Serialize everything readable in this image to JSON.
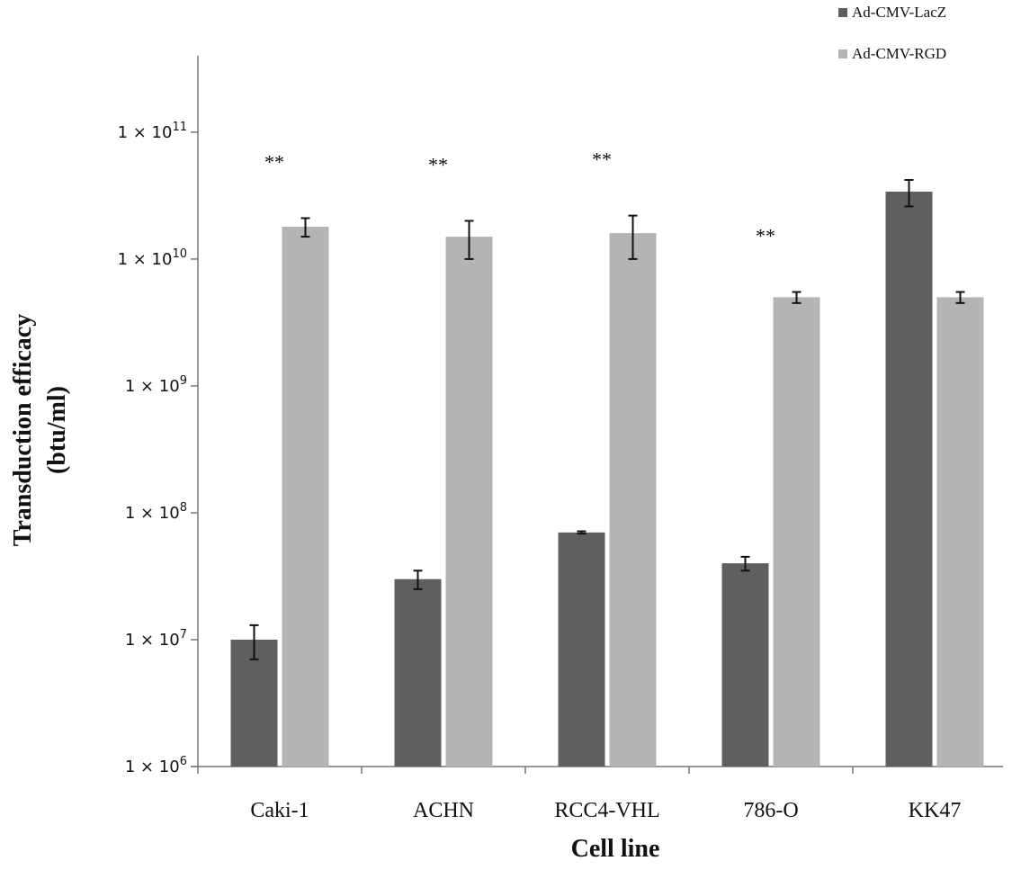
{
  "chart_data": {
    "type": "bar",
    "y_scale": "log",
    "ylim": [
      1000000,
      400000000000
    ],
    "xlabel": "Cell line",
    "ylabel": [
      "Transduction efficacy",
      "(btu/ml)"
    ],
    "y_ticks": [
      {
        "value": 1000000,
        "base": "1 × 10",
        "exp": "6"
      },
      {
        "value": 10000000,
        "base": "1 × 10",
        "exp": "7"
      },
      {
        "value": 100000000,
        "base": "1 × 10",
        "exp": "8"
      },
      {
        "value": 1000000000,
        "base": "1 × 10",
        "exp": "9"
      },
      {
        "value": 10000000000,
        "base": "1 × 10",
        "exp": "10"
      },
      {
        "value": 100000000000,
        "base": "1 × 10",
        "exp": "11"
      }
    ],
    "categories": [
      "Caki-1",
      "ACHN",
      "RCC4-VHL",
      "786-O",
      "KK47"
    ],
    "series": [
      {
        "name": "Ad-CMV-LacZ",
        "color": "#5f5f5f",
        "values": [
          10000000,
          30000000,
          70000000,
          40000000,
          34000000000
        ],
        "errors": [
          3000000,
          5000000,
          1500000,
          5000000,
          8000000000
        ]
      },
      {
        "name": "Ad-CMV-RGD",
        "color": "#b4b4b4",
        "values": [
          18000000000,
          15000000000,
          16000000000,
          5000000000,
          5000000000
        ],
        "errors": [
          3000000000,
          5000000000,
          6000000000,
          500000000,
          500000000
        ]
      }
    ],
    "significance": [
      {
        "category": "Caki-1",
        "label": "**"
      },
      {
        "category": "ACHN",
        "label": "**"
      },
      {
        "category": "RCC4-VHL",
        "label": "**"
      },
      {
        "category": "786-O",
        "label": "**"
      }
    ],
    "legend_position": "top-right",
    "grid": false
  }
}
